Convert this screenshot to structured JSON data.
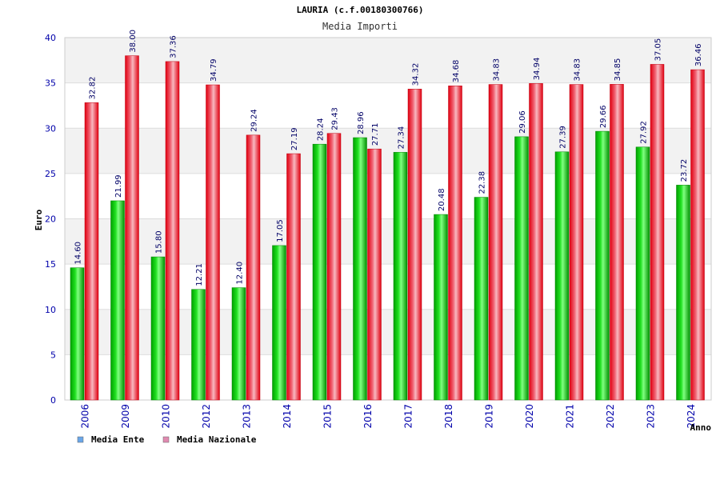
{
  "colors": {
    "ente": "#00b000",
    "nazionale": "#e8202a",
    "legend_ente": "#6aa6e8",
    "legend_nazionale": "#e08ab0",
    "band": "#f2f2f2",
    "tick_text": "#0000aa"
  },
  "chart_data": {
    "type": "bar",
    "title": "LAURIA (c.f.00180300766)",
    "subtitle": "Media Importi",
    "ylabel": "Euro",
    "xlabel": "Anno",
    "ylim": [
      0,
      40
    ],
    "yticks": [
      0,
      5,
      10,
      15,
      20,
      25,
      30,
      35,
      40
    ],
    "categories": [
      "2006",
      "2009",
      "2010",
      "2012",
      "2013",
      "2014",
      "2015",
      "2016",
      "2017",
      "2018",
      "2019",
      "2020",
      "2021",
      "2022",
      "2023",
      "2024"
    ],
    "series": [
      {
        "name": "Media Ente",
        "values": [
          14.6,
          21.99,
          15.8,
          12.21,
          12.4,
          17.05,
          28.24,
          28.96,
          27.34,
          20.48,
          22.38,
          29.06,
          27.39,
          29.66,
          27.92,
          23.72
        ],
        "labels": [
          "14.60",
          "21.99",
          "15.80",
          "12.21",
          "12.40",
          "17.05",
          "28.24",
          "28.96",
          "27.34",
          "20.48",
          "22.38",
          "29.06",
          "27.39",
          "29.66",
          "27.92",
          "23.72"
        ]
      },
      {
        "name": "Media Nazionale",
        "values": [
          32.82,
          38.0,
          37.36,
          34.79,
          29.24,
          27.19,
          29.43,
          27.71,
          34.32,
          34.68,
          34.83,
          34.94,
          34.83,
          34.85,
          37.05,
          36.46
        ],
        "labels": [
          "32.82",
          "38.00",
          "37.36",
          "34.79",
          "29.24",
          "27.19",
          "29.43",
          "27.71",
          "34.32",
          "34.68",
          "34.83",
          "34.94",
          "34.83",
          "34.85",
          "37.05",
          "36.46"
        ]
      }
    ],
    "legend": [
      "Media Ente",
      "Media Nazionale"
    ]
  }
}
